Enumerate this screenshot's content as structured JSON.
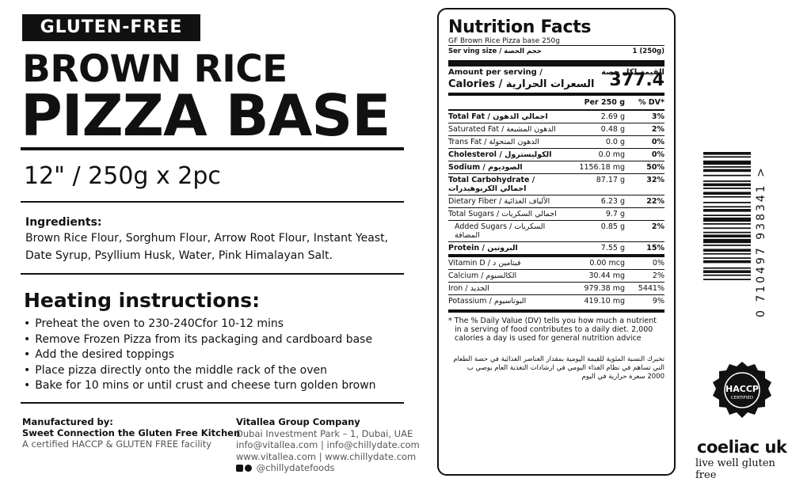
{
  "left": {
    "badge": "GLUTEN-FREE",
    "title_line1": "BROWN RICE",
    "title_line2": "PIZZA BASE",
    "size": "12\" / 250g x 2pc",
    "ingredients_heading": "Ingredients:",
    "ingredients_text": "Brown Rice Flour, Sorghum Flour, Arrow Root Flour, Instant Yeast, Date Syrup, Psyllium Husk, Water, Pink Himalayan Salt.",
    "heating_heading": "Heating instructions:",
    "heating_steps": [
      "Preheat the oven to 230-240Cfor 10-12 mins",
      "Remove Frozen Pizza from its packaging and cardboard base",
      "Add the desired toppings",
      "Place pizza directly onto the middle rack of the oven",
      "Bake for 10 mins or until crust and cheese turn golden brown"
    ],
    "manufacturer": {
      "label": "Manufactured by:",
      "name": "Sweet Connection the Gluten Free Kitchen",
      "note": "A certified HACCP & GLUTEN FREE facility"
    },
    "company": {
      "name": "Vitallea Group Company",
      "address": "Dubai Investment Park – 1, Dubai, UAE",
      "emails": "info@vitallea.com | info@chillydate.com",
      "webs": "www.vitallea.com | www.chillydate.com",
      "social": "@chillydatefoods"
    }
  },
  "nutrition": {
    "title": "Nutrition Facts",
    "product": "GF Brown Rice Pizza base 250g",
    "serving_label": "Ser ving size / حجم الحصة",
    "serving_value": "1 (250g)",
    "amount_label": "Amount per serving /",
    "amount_label_ar": "القيمة لكل حصة",
    "calories_label": "Calories / السعرات الحرارية",
    "calories_value": "377.4",
    "col_per": "Per 250 g",
    "col_dv": "% DV*",
    "rows": [
      {
        "name": "Total Fat / اجمالي الدهون",
        "value": "2.69 g",
        "dv": "3%",
        "bold": true
      },
      {
        "name": "Saturated Fat / الدهون المشبعة",
        "value": "0.48 g",
        "dv": "2%",
        "bold": false
      },
      {
        "name": "Trans Fat / الدهون المتحولة",
        "value": "0.0 g",
        "dv": "0%",
        "bold": false
      },
      {
        "name": "Cholesterol / الكوليسترول",
        "value": "0.0 mg",
        "dv": "0%",
        "bold": true
      },
      {
        "name": "Sodium / الصوديوم",
        "value": "1156.18 mg",
        "dv": "50%",
        "bold": true
      },
      {
        "name": "Total Carbohydrate / اجمالي الكربوهيدرات",
        "value": "87.17 g",
        "dv": "32%",
        "bold": true
      },
      {
        "name": "Dietary Fiber / الألياف الغذائية",
        "value": "6.23 g",
        "dv": "22%",
        "bold": false
      },
      {
        "name": "Total Sugars / اجمالي السكريات",
        "value": "9.7 g",
        "dv": "",
        "bold": false
      },
      {
        "name": "Added Sugars / السكريات المضافة",
        "value": "0.85 g",
        "dv": "2%",
        "bold": false
      },
      {
        "name": "Protein / البروتين",
        "value": "7.55 g",
        "dv": "15%",
        "bold": true
      },
      {
        "name": "Vitamin D / فيتامين د",
        "value": "0.00 mcg",
        "dv": "0%",
        "bold": false
      },
      {
        "name": "Calcium / الكالسيوم",
        "value": "30.44 mg",
        "dv": "2%",
        "bold": false
      },
      {
        "name": "Iron / الحديد",
        "value": "979.38 mg",
        "dv": "5441%",
        "bold": false
      },
      {
        "name": "Potassium / البوتاسيوم",
        "value": "419.10 mg",
        "dv": "9%",
        "bold": false
      }
    ],
    "footnote_en": "* The % Daily Value (DV) tells you how much a nutrient in a serving of food contributes to a daily diet. 2,000 calories a day is used for general nutrition advice",
    "footnote_ar": "تخبرك النسبة المئوية للقيمة اليومية بمقدار العناصر الغذائية في حصة الطعام التي تساهم في نظام الغذاء اليومي في ارشادات التغذية العام يوصي ب 2000 سعرة حرارية في اليوم"
  },
  "barcode": {
    "digits": "0 710497 938341 >"
  },
  "certs": {
    "haccp_title": "HACCP",
    "haccp_sub": "CERTIFIED",
    "coeliac_brand": "coeliac uk",
    "coeliac_tagline": "live well gluten free"
  }
}
